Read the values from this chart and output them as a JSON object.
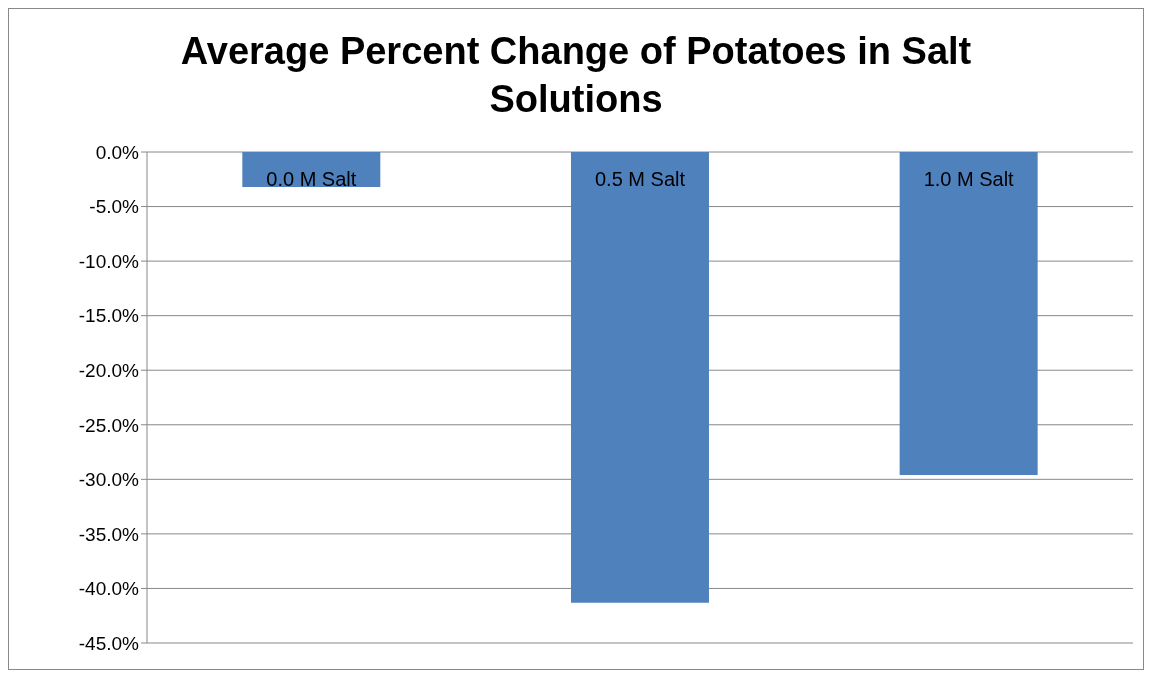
{
  "chart_data": {
    "type": "bar",
    "title": "Average Percent Change of Potatoes in Salt Solutions",
    "categories": [
      "0.0 M Salt",
      "0.5 M Salt",
      "1.0 M Salt"
    ],
    "values": [
      -3.2,
      -41.3,
      -29.6
    ],
    "color": "#4f81bd",
    "ylim": [
      -45,
      0
    ],
    "yticks": [
      {
        "value": 0,
        "label": "0.0%"
      },
      {
        "value": -5,
        "label": "-5.0%"
      },
      {
        "value": -10,
        "label": "-10.0%"
      },
      {
        "value": -15,
        "label": "-15.0%"
      },
      {
        "value": -20,
        "label": "-20.0%"
      },
      {
        "value": -25,
        "label": "-25.0%"
      },
      {
        "value": -30,
        "label": "-30.0%"
      },
      {
        "value": -35,
        "label": "-35.0%"
      },
      {
        "value": -40,
        "label": "-40.0%"
      },
      {
        "value": -45,
        "label": "-45.0%"
      }
    ],
    "grid": true
  }
}
